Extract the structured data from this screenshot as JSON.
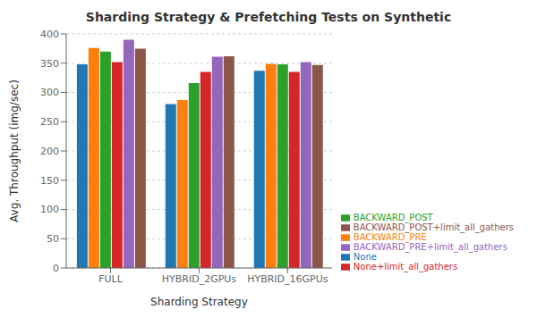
{
  "chart_data": {
    "type": "bar",
    "title": "Sharding Strategy & Prefetching Tests on Synthetic",
    "xlabel": "Sharding Strategy",
    "ylabel": "Avg. Throughput (img/sec)",
    "categories": [
      "FULL",
      "HYBRID_2GPUs",
      "HYBRID_16GPUs"
    ],
    "series": [
      {
        "name": "None",
        "color": "#1f77b4",
        "values": [
          348,
          280,
          337
        ]
      },
      {
        "name": "BACKWARD_PRE",
        "color": "#ff7f0e",
        "values": [
          376,
          287,
          349
        ]
      },
      {
        "name": "BACKWARD_POST",
        "color": "#2ca02c",
        "values": [
          370,
          316,
          348
        ]
      },
      {
        "name": "None+limit_all_gathers",
        "color": "#d62728",
        "values": [
          352,
          335,
          335
        ]
      },
      {
        "name": "BACKWARD_PRE+limit_all_gathers",
        "color": "#9467bd",
        "values": [
          390,
          361,
          352
        ]
      },
      {
        "name": "BACKWARD_POST+limit_all_gathers",
        "color": "#8c564b",
        "values": [
          375,
          362,
          347
        ]
      }
    ],
    "ylim": [
      0,
      400
    ],
    "yticks": [
      0,
      50,
      100,
      150,
      200,
      250,
      300,
      350,
      400
    ],
    "grid": true,
    "legend": "lower right"
  }
}
